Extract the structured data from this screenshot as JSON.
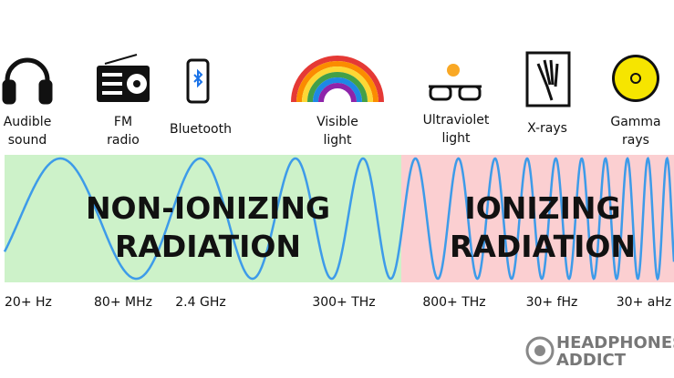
{
  "icons": [
    {
      "lines": [
        "Audible",
        "sound"
      ]
    },
    {
      "lines": [
        "FM",
        "radio"
      ]
    },
    {
      "lines": [
        "Bluetooth"
      ]
    },
    {
      "lines": [
        "Visible",
        "light"
      ]
    },
    {
      "lines": [
        "Ultraviolet",
        "light"
      ]
    },
    {
      "lines": [
        "X-rays"
      ]
    },
    {
      "lines": [
        "Gamma",
        "rays"
      ]
    }
  ],
  "regions": [
    {
      "lines": [
        "NON-IONIZING",
        "RADIATION"
      ]
    },
    {
      "lines": [
        "IONIZING",
        "RADIATION"
      ]
    }
  ],
  "frequencies": [
    "20+ Hz",
    "80+ MHz",
    "2.4 GHz",
    "300+ THz",
    "800+ THz",
    "30+ fHz",
    "30+ aHz"
  ],
  "logo": {
    "line1": "HEADPHONES",
    "line2": "ADDICT"
  }
}
